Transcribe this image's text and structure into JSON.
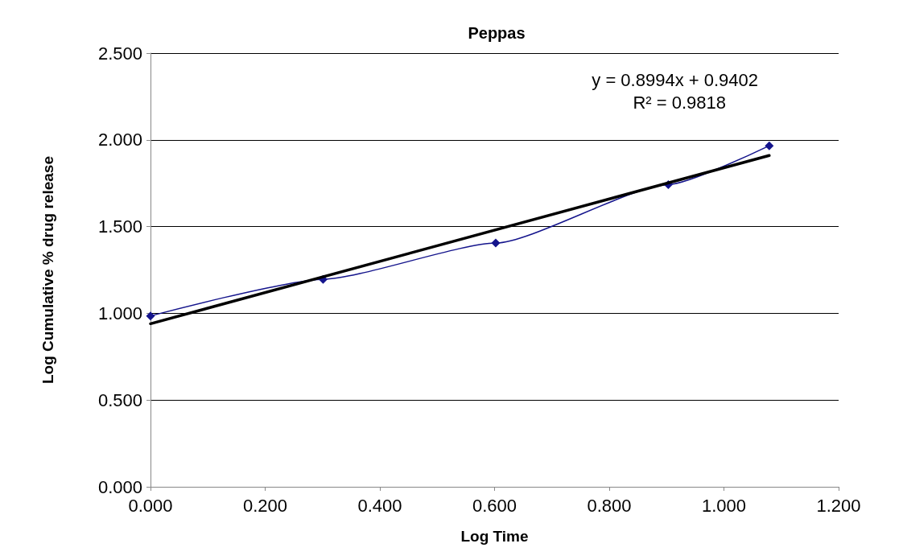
{
  "chart_data": {
    "type": "line",
    "title": "Peppas",
    "xlabel": "Log Time",
    "ylabel": "Log Cumulative % drug release",
    "xlim": [
      0,
      1.2
    ],
    "xticks": [
      {
        "value": 0,
        "label": "0.000"
      },
      {
        "value": 0.2,
        "label": "0.200"
      },
      {
        "value": 0.4,
        "label": "0.400"
      },
      {
        "value": 0.6,
        "label": "0.600"
      },
      {
        "value": 0.8,
        "label": "0.800"
      },
      {
        "value": 1,
        "label": "1.000"
      },
      {
        "value": 1.2,
        "label": "1.200"
      }
    ],
    "ylim": [
      0,
      2.5
    ],
    "yticks": [
      {
        "value": 0,
        "label": "0.000"
      },
      {
        "value": 0.5,
        "label": "0.500"
      },
      {
        "value": 1,
        "label": "1.000"
      },
      {
        "value": 1.5,
        "label": "1.500"
      },
      {
        "value": 2,
        "label": "2.000"
      },
      {
        "value": 2.5,
        "label": "2.500"
      }
    ],
    "grid": "y",
    "marker": "diamond",
    "line_style": "solid",
    "series": [
      {
        "color": "#14148c",
        "x": [
          0,
          0.301,
          0.602,
          0.903,
          1.079
        ],
        "values": [
          0.985,
          1.196,
          1.405,
          1.742,
          1.966
        ]
      },
      {
        "type": "line",
        "color": "#000000",
        "marker": "none",
        "x": [
          0,
          1.079
        ],
        "values": [
          0.94,
          1.91
        ]
      }
    ],
    "annotations": [
      "y = 0.8994x + 0.9402",
      "R² = 0.9818"
    ]
  }
}
